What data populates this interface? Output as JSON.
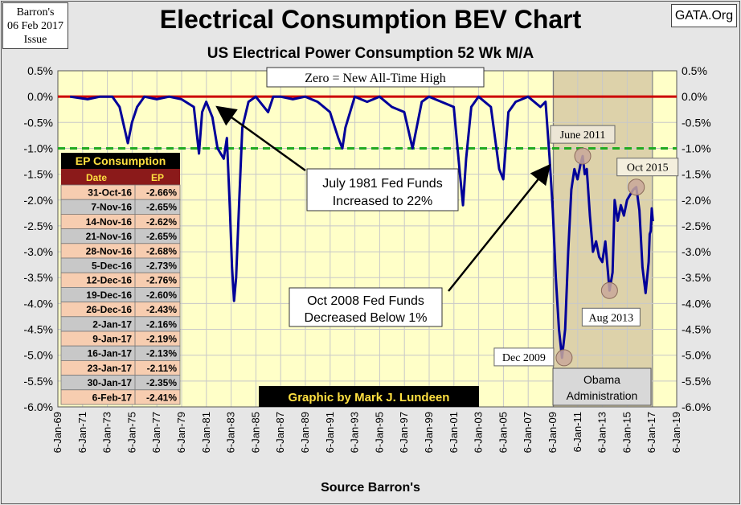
{
  "header": {
    "issue_lines": [
      "Barron's",
      "06 Feb 2017",
      "Issue"
    ],
    "site": "GATA.Org",
    "title": "Electrical Consumption  BEV Chart",
    "subtitle": "US Electrical Power Consumption 52 Wk M/A",
    "source": "Source Barron's",
    "credit": "Graphic by Mark J. Lundeen"
  },
  "colors": {
    "plot_bg": "#ffffc8",
    "line": "#000099",
    "zero_line": "#cc0000",
    "dashed": "#22aa22",
    "obama_shade": "#ddd2aa",
    "marker": "#c9a89a"
  },
  "chart_data": {
    "type": "line",
    "title": "Electrical Consumption  BEV Chart",
    "subtitle": "US Electrical Power Consumption 52 Wk M/A",
    "xlabel": "Source Barron's",
    "ylabel": "",
    "ylim": [
      -6.0,
      0.5
    ],
    "xlim": [
      "1969-01-06",
      "2019-01-06"
    ],
    "grid": true,
    "y_ticks": [
      "0.5%",
      "0.0%",
      "-0.5%",
      "-1.0%",
      "-1.5%",
      "-2.0%",
      "-2.5%",
      "-3.0%",
      "-3.5%",
      "-4.0%",
      "-4.5%",
      "-5.0%",
      "-5.5%",
      "-6.0%"
    ],
    "x_ticks": [
      "6-Jan-69",
      "6-Jan-71",
      "6-Jan-73",
      "6-Jan-75",
      "6-Jan-77",
      "6-Jan-79",
      "6-Jan-81",
      "6-Jan-83",
      "6-Jan-85",
      "6-Jan-87",
      "6-Jan-89",
      "6-Jan-91",
      "6-Jan-93",
      "6-Jan-95",
      "6-Jan-97",
      "6-Jan-99",
      "6-Jan-01",
      "6-Jan-03",
      "6-Jan-05",
      "6-Jan-07",
      "6-Jan-09",
      "6-Jan-11",
      "6-Jan-13",
      "6-Jan-15",
      "6-Jan-17",
      "6-Jan-19"
    ],
    "reference_lines": [
      {
        "y": 0.0,
        "style": "solid"
      },
      {
        "y": -1.0,
        "style": "dashed"
      }
    ],
    "shaded_region": {
      "x_start": "2009-01-20",
      "x_end": "2017-01-20",
      "label_lines": [
        "Obama",
        "Administration"
      ]
    },
    "series": [
      {
        "x": [
          "1970-01",
          "1971-06",
          "1972-06",
          "1973-06",
          "1974-01",
          "1974-09",
          "1975-01",
          "1975-06",
          "1976-01",
          "1977-01",
          "1978-01",
          "1979-01",
          "1980-01",
          "1980-06",
          "1980-09",
          "1981-01",
          "1981-07",
          "1981-12",
          "1982-06",
          "1982-09",
          "1982-12",
          "1983-02",
          "1983-04",
          "1983-06",
          "1983-09",
          "1983-12",
          "1984-06",
          "1985-01",
          "1986-01",
          "1986-06",
          "1987-01",
          "1988-01",
          "1989-01",
          "1990-01",
          "1991-01",
          "1991-09",
          "1992-01",
          "1992-04",
          "1993-01",
          "1994-01",
          "1995-01",
          "1996-01",
          "1997-01",
          "1997-09",
          "1998-06",
          "1999-01",
          "2000-01",
          "2001-01",
          "2001-07",
          "2001-10",
          "2002-01",
          "2002-06",
          "2003-01",
          "2004-01",
          "2004-09",
          "2005-01",
          "2005-06",
          "2006-01",
          "2007-01",
          "2008-01",
          "2008-06",
          "2008-10",
          "2009-01",
          "2009-04",
          "2009-07",
          "2009-10",
          "2010-01",
          "2010-04",
          "2010-07",
          "2010-10",
          "2011-01",
          "2011-04",
          "2011-06",
          "2011-08",
          "2011-10",
          "2012-01",
          "2012-04",
          "2012-07",
          "2012-10",
          "2013-01",
          "2013-04",
          "2013-08",
          "2013-11",
          "2014-01",
          "2014-04",
          "2014-07",
          "2014-10",
          "2015-01",
          "2015-04",
          "2015-07",
          "2015-10",
          "2016-01",
          "2016-04",
          "2016-07",
          "2016-10",
          "2016-11",
          "2016-12",
          "2017-01",
          "2017-02"
        ],
        "y": [
          0.0,
          -0.05,
          0.0,
          0.0,
          -0.2,
          -0.9,
          -0.5,
          -0.2,
          0.0,
          -0.05,
          0.0,
          -0.05,
          -0.2,
          -1.1,
          -0.3,
          -0.1,
          -0.4,
          -1.0,
          -1.2,
          -0.8,
          -2.2,
          -3.3,
          -3.95,
          -3.5,
          -2.0,
          -0.6,
          -0.1,
          0.0,
          -0.3,
          0.0,
          0.0,
          -0.05,
          0.0,
          -0.1,
          -0.3,
          -0.8,
          -1.0,
          -0.6,
          0.0,
          -0.1,
          0.0,
          -0.2,
          -0.3,
          -1.0,
          -0.1,
          0.0,
          -0.1,
          -0.2,
          -1.5,
          -2.1,
          -1.2,
          -0.2,
          0.0,
          -0.2,
          -1.4,
          -1.6,
          -0.3,
          -0.1,
          0.0,
          -0.2,
          -0.1,
          -1.2,
          -2.2,
          -3.5,
          -4.5,
          -5.05,
          -4.5,
          -3.0,
          -1.8,
          -1.4,
          -1.6,
          -1.3,
          -1.15,
          -1.5,
          -1.4,
          -2.3,
          -3.0,
          -2.8,
          -3.1,
          -3.2,
          -2.8,
          -3.75,
          -3.4,
          -2.0,
          -2.4,
          -2.1,
          -2.3,
          -2.0,
          -1.9,
          -1.8,
          -1.75,
          -2.2,
          -3.3,
          -3.8,
          -3.2,
          -2.66,
          -2.6,
          -2.16,
          -2.41
        ]
      }
    ],
    "points": [
      {
        "label": "June 2011",
        "x": "2011-06",
        "y": -1.15
      },
      {
        "label": "Oct 2015",
        "x": "2015-10",
        "y": -1.75
      },
      {
        "label": "Aug 2013",
        "x": "2013-08",
        "y": -3.75
      },
      {
        "label": "Dec 2009",
        "x": "2009-12",
        "y": -5.05
      }
    ],
    "annotations": [
      {
        "lines": [
          "Zero = New All-Time High"
        ]
      },
      {
        "lines": [
          "July 1981 Fed Funds",
          "Increased to 22%"
        ],
        "arrow_to": {
          "x": "1981-07",
          "y": -0.1
        }
      },
      {
        "lines": [
          "Oct 2008 Fed Funds",
          "Decreased Below 1%"
        ],
        "arrow_to": {
          "x": "2008-10",
          "y": -1.3
        }
      }
    ]
  },
  "table": {
    "title": "EP Consumption",
    "headers": [
      "Date",
      "EP"
    ],
    "rows": [
      [
        "31-Oct-16",
        "-2.66%"
      ],
      [
        "7-Nov-16",
        "-2.65%"
      ],
      [
        "14-Nov-16",
        "-2.62%"
      ],
      [
        "21-Nov-16",
        "-2.65%"
      ],
      [
        "28-Nov-16",
        "-2.68%"
      ],
      [
        "5-Dec-16",
        "-2.73%"
      ],
      [
        "12-Dec-16",
        "-2.76%"
      ],
      [
        "19-Dec-16",
        "-2.60%"
      ],
      [
        "26-Dec-16",
        "-2.43%"
      ],
      [
        "2-Jan-17",
        "-2.16%"
      ],
      [
        "9-Jan-17",
        "-2.19%"
      ],
      [
        "16-Jan-17",
        "-2.13%"
      ],
      [
        "23-Jan-17",
        "-2.11%"
      ],
      [
        "30-Jan-17",
        "-2.35%"
      ],
      [
        "6-Feb-17",
        "-2.41%"
      ]
    ]
  }
}
